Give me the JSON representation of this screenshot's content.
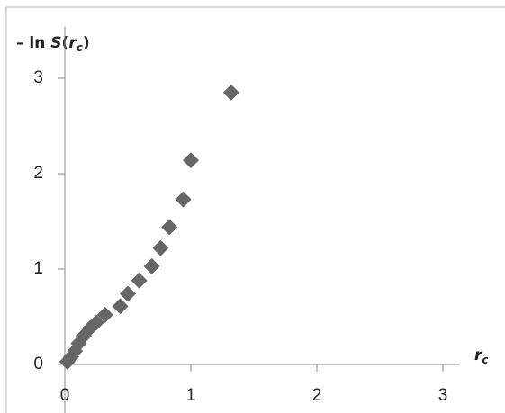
{
  "chart_data": {
    "type": "scatter",
    "y_label": [
      "– ln ",
      "S",
      "(",
      "r",
      "c",
      ")"
    ],
    "x_label": [
      "r",
      "c"
    ],
    "x": [
      0.02,
      0.05,
      0.08,
      0.11,
      0.15,
      0.2,
      0.25,
      0.32,
      0.44,
      0.5,
      0.59,
      0.69,
      0.76,
      0.83,
      0.94,
      1.0,
      1.32
    ],
    "values": [
      0.03,
      0.08,
      0.14,
      0.22,
      0.3,
      0.38,
      0.44,
      0.52,
      0.61,
      0.74,
      0.88,
      1.03,
      1.22,
      1.44,
      1.73,
      2.14,
      2.85
    ],
    "color": "#666666",
    "xlim": [
      0,
      3
    ],
    "ylim": [
      0,
      3
    ],
    "xticks": [
      0,
      1,
      2,
      3
    ],
    "yticks": [
      0,
      1,
      2,
      3
    ]
  }
}
